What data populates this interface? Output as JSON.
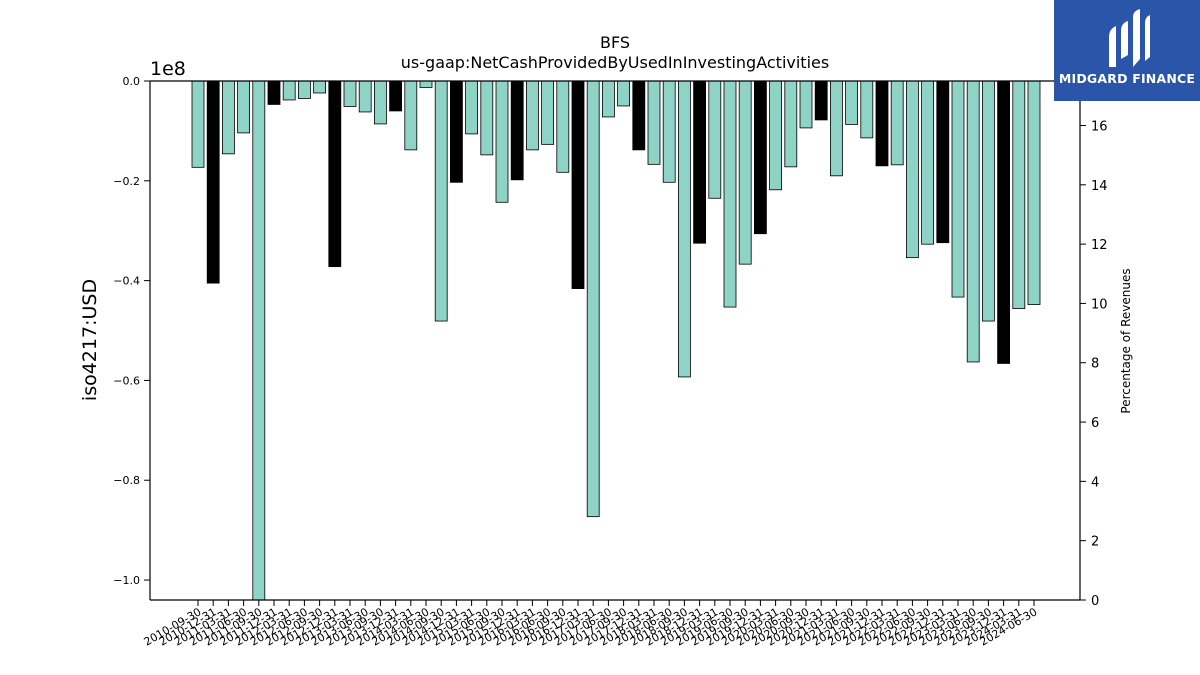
{
  "chart_data": {
    "type": "bar",
    "title": "BFS",
    "subtitle": "us-gaap:NetCashProvidedByUsedInInvestingActivities",
    "ylabel": "iso4217:USD",
    "y_scale_label": "1e8",
    "y2label": "Percentage of Revenues",
    "ylim": [
      -1.04,
      0.0
    ],
    "y_ticks": [
      0.0,
      -0.2,
      -0.4,
      -0.6,
      -0.8,
      -1.0
    ],
    "y2lim": [
      0,
      17.5
    ],
    "y2_ticks": [
      0,
      2,
      4,
      6,
      8,
      10,
      12,
      14,
      16
    ],
    "grid": false,
    "colors": {
      "quarter": "#8ed3c5",
      "annual": "#000000",
      "edge": "#000000"
    },
    "categories": [
      "2010-09-30",
      "2010-12-31",
      "2011-03-31",
      "2011-06-30",
      "2011-09-30",
      "2011-12-31",
      "2012-03-31",
      "2012-06-30",
      "2012-09-30",
      "2012-12-31",
      "2013-03-31",
      "2013-06-30",
      "2013-09-30",
      "2013-12-31",
      "2014-03-31",
      "2014-06-30",
      "2014-09-30",
      "2014-12-31",
      "2015-03-31",
      "2015-06-30",
      "2015-09-30",
      "2015-12-31",
      "2016-03-31",
      "2016-06-30",
      "2016-09-30",
      "2016-12-31",
      "2017-03-31",
      "2017-06-30",
      "2017-09-30",
      "2017-12-31",
      "2018-03-31",
      "2018-06-30",
      "2018-09-30",
      "2018-12-31",
      "2019-03-31",
      "2019-06-30",
      "2019-09-30",
      "2019-12-31",
      "2020-03-31",
      "2020-06-30",
      "2020-09-30",
      "2020-12-31",
      "2021-03-31",
      "2021-06-30",
      "2021-09-30",
      "2021-12-31",
      "2022-03-31",
      "2022-06-30",
      "2022-09-30",
      "2022-12-31",
      "2023-03-31",
      "2023-06-30",
      "2023-09-30",
      "2023-12-31",
      "2024-03-31",
      "2024-06-30"
    ],
    "series": [
      {
        "values": [
          -0.173,
          -0.405,
          -0.146,
          -0.104,
          -1.04,
          -0.047,
          -0.038,
          -0.035,
          -0.024,
          -0.372,
          -0.051,
          -0.062,
          -0.086,
          -0.06,
          -0.138,
          -0.013,
          -0.481,
          -0.203,
          -0.106,
          -0.148,
          -0.243,
          -0.198,
          -0.138,
          -0.127,
          -0.183,
          -0.416,
          -0.873,
          -0.072,
          -0.05,
          -0.138,
          -0.167,
          -0.203,
          -0.593,
          -0.325,
          -0.235,
          -0.453,
          -0.367,
          -0.306,
          -0.218,
          -0.172,
          -0.094,
          -0.078,
          -0.19,
          -0.087,
          -0.114,
          -0.17,
          -0.168,
          -0.354,
          -0.327,
          -0.324,
          -0.433,
          -0.563,
          -0.481,
          -0.566,
          -0.456,
          -0.448
        ],
        "annual": [
          false,
          true,
          false,
          false,
          false,
          true,
          false,
          false,
          false,
          true,
          false,
          false,
          false,
          true,
          false,
          false,
          false,
          true,
          false,
          false,
          false,
          true,
          false,
          false,
          false,
          true,
          false,
          false,
          false,
          true,
          false,
          false,
          false,
          true,
          false,
          false,
          false,
          true,
          false,
          false,
          false,
          true,
          false,
          false,
          false,
          true,
          false,
          false,
          false,
          true,
          false,
          false,
          false,
          true,
          false,
          false
        ]
      }
    ]
  },
  "logo": {
    "name": "MIDGARD FINANCE",
    "icon": "midgard-logo-icon"
  }
}
